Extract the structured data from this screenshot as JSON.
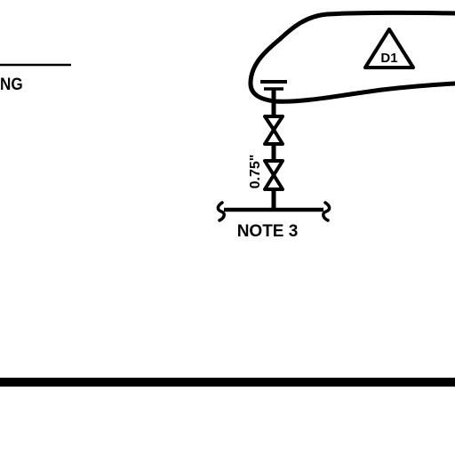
{
  "colors": {
    "ink": "#000000",
    "background": "#ffffff"
  },
  "labels": {
    "top_left_fragment": "NG",
    "revision_tag": "D1",
    "pipe_size": "0.75\"",
    "note_reference": "NOTE 3"
  },
  "symbols": {
    "revision_marker": "triangle-revision-icon",
    "valve": "gate-valve-icon",
    "valve_count": 2,
    "pipe_cap": "pipe-cap-icon",
    "break_lines": "break-line-icon"
  }
}
